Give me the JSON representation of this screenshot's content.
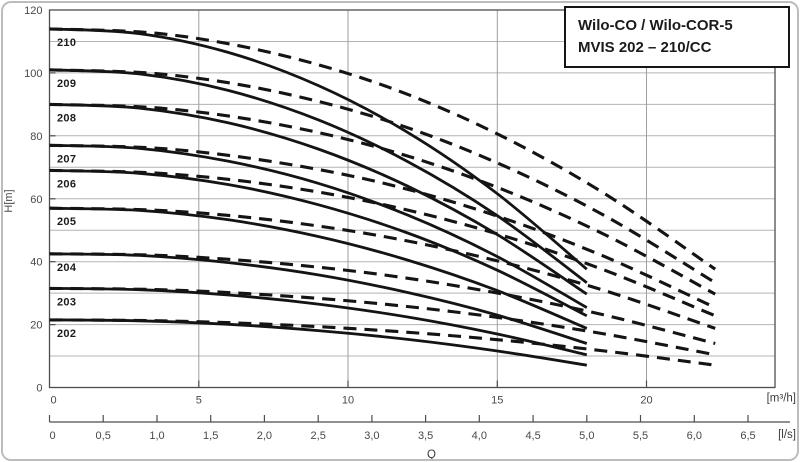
{
  "title_box": {
    "line1": "Wilo-CO / Wilo-COR-5",
    "line2": "MVIS 202 – 210/CC"
  },
  "style": {
    "curve_color": "#141414",
    "solid_width": 2.8,
    "dashed_width": 3.1,
    "dash_pattern": "13 8",
    "grid_color": "#b3b3b3",
    "vgrid_color": "#9e9e9e",
    "axis_color": "#4e4e4e",
    "frame_color": "#bdbdbd"
  },
  "chart_data": {
    "type": "line",
    "description": "Pump head H versus flow Q curves for Wilo MVIS 202-210 models; solid curves end near 18 m3/h, dashed curves extend to about 22.3 m3/h",
    "grid": "on",
    "y_axis": {
      "label": "H[m]",
      "range": [
        0,
        120
      ],
      "grid_step": 10,
      "tick_values": [
        0,
        20,
        40,
        60,
        80,
        100,
        120
      ],
      "tick_labels": [
        "0",
        "20",
        "40",
        "60",
        "80",
        "100",
        "120"
      ]
    },
    "x_axis_m3h": {
      "unit": "[m³/h]",
      "range": [
        0,
        24.3
      ],
      "grid": [
        5,
        10,
        15,
        20
      ],
      "tick_values": [
        0,
        5,
        10,
        15,
        20
      ],
      "tick_labels": [
        "0",
        "5",
        "10",
        "15",
        "20"
      ]
    },
    "x_axis_ls": {
      "unit": "[l/s]",
      "quantity_label": "Q",
      "tick_values": [
        0,
        0.5,
        1.0,
        1.5,
        2.0,
        2.5,
        3.0,
        3.5,
        4.0,
        4.5,
        5.0,
        5.5,
        6.0,
        6.5
      ],
      "tick_labels": [
        "0",
        "0,5",
        "1,0",
        "1,5",
        "2,0",
        "2,5",
        "3,0",
        "3,5",
        "4,0",
        "4,5",
        "5,0",
        "5,5",
        "6,0",
        "6,5"
      ]
    },
    "series": [
      {
        "model": "210",
        "shutoff_head_m": 114,
        "solid": {
          "q_m3h": [
            0,
            3,
            6,
            9,
            12,
            15,
            18
          ],
          "h_m": [
            114,
            112.5,
            106.5,
            96.0,
            81.1,
            61.6,
            37.6
          ]
        },
        "dashed": {
          "q_m3h": [
            0,
            3.7,
            7.4,
            11.2,
            14.9,
            18.6,
            22.3
          ],
          "h_m": [
            114,
            112.5,
            106.5,
            96.0,
            81.1,
            61.6,
            37.6
          ]
        }
      },
      {
        "model": "209",
        "shutoff_head_m": 101,
        "solid": {
          "q_m3h": [
            0,
            3,
            6,
            9,
            12,
            15,
            18
          ],
          "h_m": [
            101,
            99.7,
            94.4,
            85.1,
            71.8,
            54.6,
            33.3
          ]
        },
        "dashed": {
          "q_m3h": [
            0,
            3.7,
            7.4,
            11.2,
            14.9,
            18.6,
            22.3
          ],
          "h_m": [
            101,
            99.7,
            94.4,
            85.1,
            71.8,
            54.6,
            33.3
          ]
        }
      },
      {
        "model": "208",
        "shutoff_head_m": 90,
        "solid": {
          "q_m3h": [
            0,
            3,
            6,
            9,
            12,
            15,
            18
          ],
          "h_m": [
            90,
            88.8,
            84.1,
            75.8,
            64.0,
            48.6,
            29.7
          ]
        },
        "dashed": {
          "q_m3h": [
            0,
            3.7,
            7.4,
            11.2,
            14.9,
            18.6,
            22.3
          ],
          "h_m": [
            90,
            88.8,
            84.1,
            75.8,
            64.0,
            48.6,
            29.7
          ]
        }
      },
      {
        "model": "207",
        "shutoff_head_m": 77,
        "solid": {
          "q_m3h": [
            0,
            3,
            6,
            9,
            12,
            15,
            18
          ],
          "h_m": [
            77,
            76.0,
            71.9,
            64.9,
            54.8,
            41.6,
            25.4
          ]
        },
        "dashed": {
          "q_m3h": [
            0,
            3.7,
            7.4,
            11.2,
            14.9,
            18.6,
            22.3
          ],
          "h_m": [
            77,
            76.0,
            71.9,
            64.9,
            54.8,
            41.6,
            25.4
          ]
        }
      },
      {
        "model": "206",
        "shutoff_head_m": 69,
        "solid": {
          "q_m3h": [
            0,
            3,
            6,
            9,
            12,
            15,
            18
          ],
          "h_m": [
            69,
            68.1,
            64.5,
            58.1,
            49.1,
            37.3,
            22.8
          ]
        },
        "dashed": {
          "q_m3h": [
            0,
            3.7,
            7.4,
            11.2,
            14.9,
            18.6,
            22.3
          ],
          "h_m": [
            69,
            68.1,
            64.5,
            58.1,
            49.1,
            37.3,
            22.8
          ]
        }
      },
      {
        "model": "205",
        "shutoff_head_m": 57,
        "solid": {
          "q_m3h": [
            0,
            3,
            6,
            9,
            12,
            15,
            18
          ],
          "h_m": [
            57,
            56.3,
            53.3,
            48.0,
            40.5,
            30.8,
            18.8
          ]
        },
        "dashed": {
          "q_m3h": [
            0,
            3.7,
            7.4,
            11.2,
            14.9,
            18.6,
            22.3
          ],
          "h_m": [
            57,
            56.3,
            53.3,
            48.0,
            40.5,
            30.8,
            18.8
          ]
        }
      },
      {
        "model": "204",
        "shutoff_head_m": 42.5,
        "solid": {
          "q_m3h": [
            0,
            3,
            6,
            9,
            12,
            15,
            18
          ],
          "h_m": [
            42.5,
            42.0,
            39.7,
            35.8,
            30.2,
            23.0,
            14.0
          ]
        },
        "dashed": {
          "q_m3h": [
            0,
            3.7,
            7.4,
            11.2,
            14.9,
            18.6,
            22.3
          ],
          "h_m": [
            42.5,
            42.0,
            39.7,
            35.8,
            30.2,
            23.0,
            14.0
          ]
        }
      },
      {
        "model": "203",
        "shutoff_head_m": 31.5,
        "solid": {
          "q_m3h": [
            0,
            3,
            6,
            9,
            12,
            15,
            18
          ],
          "h_m": [
            31.5,
            31.1,
            29.4,
            26.5,
            22.4,
            17.0,
            10.4
          ]
        },
        "dashed": {
          "q_m3h": [
            0,
            3.7,
            7.4,
            11.2,
            14.9,
            18.6,
            22.3
          ],
          "h_m": [
            31.5,
            31.1,
            29.4,
            26.5,
            22.4,
            17.0,
            10.4
          ]
        }
      },
      {
        "model": "202",
        "shutoff_head_m": 21.5,
        "solid": {
          "q_m3h": [
            0,
            3,
            6,
            9,
            12,
            15,
            18
          ],
          "h_m": [
            21.5,
            21.2,
            20.1,
            18.1,
            15.3,
            11.6,
            7.1
          ]
        },
        "dashed": {
          "q_m3h": [
            0,
            3.7,
            7.4,
            11.2,
            14.9,
            18.6,
            22.3
          ],
          "h_m": [
            21.5,
            21.2,
            20.1,
            18.1,
            15.3,
            11.6,
            7.1
          ]
        }
      }
    ]
  }
}
